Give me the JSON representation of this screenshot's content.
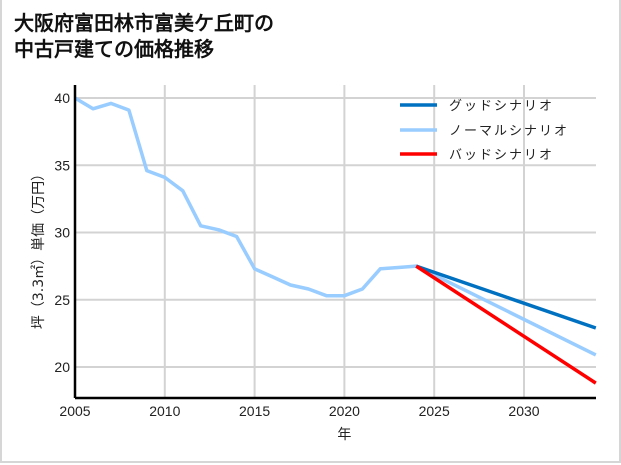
{
  "title_lines": [
    "大阪府富田林市富美ケ丘町の",
    "中古戸建ての価格推移"
  ],
  "chart_data": {
    "type": "line",
    "title": "大阪府富田林市富美ケ丘町の中古戸建ての価格推移",
    "xlabel": "年",
    "ylabel": "坪（3.3㎡）単価（万円）",
    "xlim": [
      2005,
      2034
    ],
    "ylim": [
      17.5,
      40.3
    ],
    "xticks": [
      2005,
      2010,
      2015,
      2020,
      2025,
      2030
    ],
    "yticks": [
      20,
      25,
      30,
      35,
      40
    ],
    "grid": true,
    "legend_position": "upper right",
    "series": [
      {
        "name": "グッドシナリオ",
        "color": "#0070c0",
        "x": [
          2024,
          2034
        ],
        "y": [
          27.5,
          22.9
        ]
      },
      {
        "name": "ノーマルシナリオ",
        "color": "#99ccff",
        "x": [
          2005,
          2006,
          2007,
          2008,
          2009,
          2010,
          2011,
          2012,
          2013,
          2014,
          2015,
          2016,
          2017,
          2018,
          2019,
          2020,
          2021,
          2022,
          2023,
          2024,
          2034
        ],
        "y": [
          40.0,
          39.2,
          39.6,
          39.1,
          34.6,
          34.1,
          33.1,
          30.5,
          30.2,
          29.7,
          27.3,
          26.7,
          26.1,
          25.8,
          25.3,
          25.3,
          25.8,
          27.3,
          27.4,
          27.5,
          20.9
        ]
      },
      {
        "name": "バッドシナリオ",
        "color": "#ff0000",
        "x": [
          2024,
          2034
        ],
        "y": [
          27.5,
          18.8
        ]
      }
    ]
  }
}
